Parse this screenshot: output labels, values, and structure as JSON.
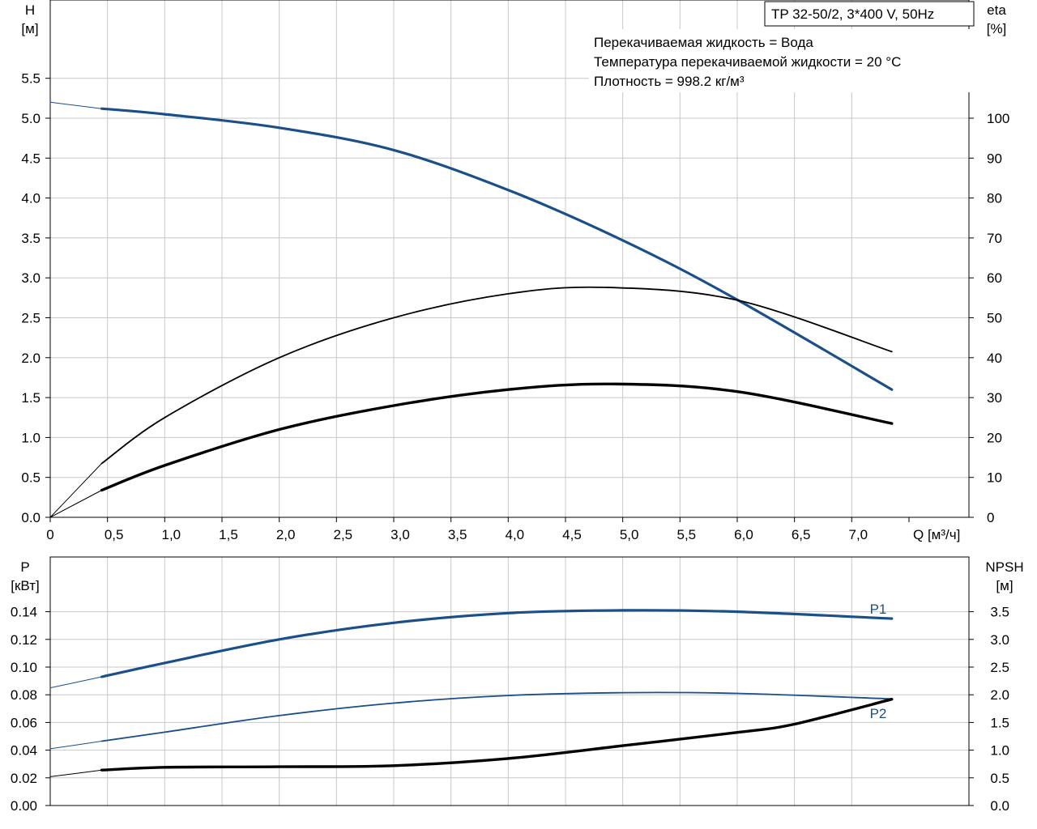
{
  "title_box": "TP 32-50/2, 3*400 V, 50Hz",
  "info_lines": [
    "Перекачиваемая жидкость = Вода",
    "Температура перекачиваемой жидкости = 20 °C",
    "Плотность = 998.2 кг/м³"
  ],
  "colors": {
    "blue": "#1a4f8a",
    "black": "#000000",
    "grid": "#c8c8c8"
  },
  "chart_data": [
    {
      "type": "line",
      "panel": "top",
      "xlabel": "Q [м³/ч]",
      "ylabel_left": [
        "H",
        "[м]"
      ],
      "ylabel_right": [
        "eta",
        "[%]"
      ],
      "xlim": [
        0,
        7.5
      ],
      "ylim_left": [
        0,
        6
      ],
      "ylim_right": [
        0,
        120
      ],
      "x_ticks": [
        "0",
        "0,5",
        "1,0",
        "1,5",
        "2,0",
        "2,5",
        "3,0",
        "3,5",
        "4,0",
        "4,5",
        "5,0",
        "5,5",
        "6,0",
        "6,5",
        "7,0"
      ],
      "y_ticks_left": [
        "0.0",
        "0.5",
        "1.0",
        "1.5",
        "2.0",
        "2.5",
        "3.0",
        "3.5",
        "4.0",
        "4.5",
        "5.0",
        "5.5"
      ],
      "y_ticks_right": [
        "0",
        "10",
        "20",
        "30",
        "40",
        "50",
        "60",
        "70",
        "80",
        "90",
        "100"
      ],
      "grid": true,
      "series": [
        {
          "key": "H",
          "axis": "left",
          "color": "#1a4f8a",
          "x": [
            0.45,
            1.0,
            2.0,
            3.0,
            4.0,
            5.0,
            5.97,
            7.35
          ],
          "y": [
            5.12,
            5.05,
            4.88,
            4.6,
            4.1,
            3.47,
            2.75,
            1.6
          ],
          "ext_x": [
            0,
            0.45
          ],
          "ext_y": [
            5.2,
            5.12
          ]
        },
        {
          "key": "eta-thin",
          "axis": "right",
          "color": "#000000",
          "x": [
            0.45,
            1.0,
            2.0,
            3.0,
            4.0,
            4.85,
            6.0,
            7.35
          ],
          "y": [
            13.5,
            25.0,
            40.0,
            50.0,
            56.0,
            57.6,
            54.4,
            41.5
          ],
          "ext_x": [
            0,
            0.45
          ],
          "ext_y": [
            0,
            13.5
          ]
        },
        {
          "key": "eta-thick",
          "axis": "right",
          "color": "#000000",
          "x": [
            0.45,
            1.0,
            2.0,
            3.0,
            4.0,
            4.9,
            6.0,
            7.35
          ],
          "y": [
            6.8,
            13.0,
            22.0,
            28.0,
            32.0,
            33.4,
            31.5,
            23.5
          ],
          "ext_x": [
            0,
            0.45
          ],
          "ext_y": [
            0,
            6.8
          ]
        }
      ]
    },
    {
      "type": "line",
      "panel": "bottom",
      "ylabel_left": [
        "P",
        "[кВт]"
      ],
      "ylabel_right": [
        "NPSH",
        "[м]"
      ],
      "xlim": [
        0,
        7.5
      ],
      "ylim_left": [
        0,
        0.16
      ],
      "ylim_right": [
        0,
        4.0
      ],
      "y_ticks_left": [
        "0.00",
        "0.02",
        "0.04",
        "0.06",
        "0.08",
        "0.10",
        "0.12",
        "0.14"
      ],
      "y_ticks_right": [
        "0.0",
        "0.5",
        "1.0",
        "1.5",
        "2.0",
        "2.5",
        "3.0",
        "3.5"
      ],
      "grid": true,
      "series": [
        {
          "name": "P1",
          "key": "P1",
          "axis": "left",
          "color": "#1a4f8a",
          "x": [
            0.45,
            1.0,
            2.0,
            3.0,
            4.0,
            5.0,
            6.0,
            7.35
          ],
          "y": [
            0.093,
            0.103,
            0.12,
            0.132,
            0.139,
            0.141,
            0.14,
            0.135
          ],
          "ext_x": [
            0,
            0.45
          ],
          "ext_y": [
            0.085,
            0.093
          ]
        },
        {
          "name": "P2",
          "key": "P2",
          "axis": "left",
          "color": "#1a4f8a",
          "x": [
            0.45,
            1.0,
            2.0,
            3.0,
            4.0,
            5.0,
            6.0,
            7.35
          ],
          "y": [
            0.0465,
            0.053,
            0.065,
            0.074,
            0.0795,
            0.0815,
            0.081,
            0.077
          ],
          "ext_x": [
            0,
            0.45
          ],
          "ext_y": [
            0.041,
            0.0465
          ]
        },
        {
          "key": "NPSH",
          "axis": "right",
          "color": "#000000",
          "x": [
            0.45,
            1.0,
            2.0,
            3.0,
            4.0,
            5.0,
            6.0,
            6.5,
            7.35
          ],
          "y": [
            0.64,
            0.69,
            0.7,
            0.72,
            0.85,
            1.08,
            1.32,
            1.47,
            1.92
          ],
          "ext_x": [
            0,
            0.45
          ],
          "ext_y": [
            0.52,
            0.64
          ]
        }
      ]
    }
  ]
}
